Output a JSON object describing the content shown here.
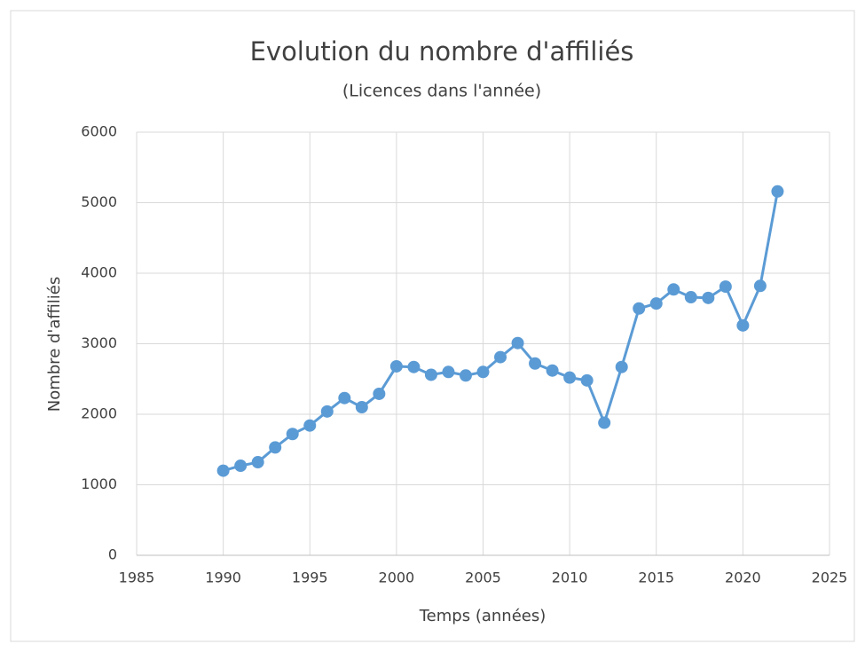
{
  "chart_data": {
    "type": "line",
    "title": "Evolution du nombre d'affiliés",
    "subtitle": "(Licences dans l'année)",
    "x_label": "Temps (années)",
    "y_label": "Nombre d'affiliés",
    "x": [
      1990,
      1991,
      1992,
      1993,
      1994,
      1995,
      1996,
      1997,
      1998,
      1999,
      2000,
      2001,
      2002,
      2003,
      2004,
      2005,
      2006,
      2007,
      2008,
      2009,
      2010,
      2011,
      2012,
      2013,
      2014,
      2015,
      2016,
      2017,
      2018,
      2019,
      2020,
      2021,
      2022
    ],
    "series": [
      {
        "color": "#5b9bd5",
        "values": [
          1200,
          1270,
          1320,
          1530,
          1720,
          1840,
          2040,
          2230,
          2100,
          2290,
          2680,
          2670,
          2560,
          2600,
          2550,
          2600,
          2810,
          3010,
          2720,
          2620,
          2520,
          2480,
          1880,
          2670,
          3500,
          3570,
          3770,
          3660,
          3650,
          3810,
          3260,
          3820,
          5160
        ]
      }
    ],
    "xlim": [
      1985,
      2025
    ],
    "xticks": [
      1985,
      1990,
      1995,
      2000,
      2005,
      2010,
      2015,
      2020,
      2025
    ],
    "ylim": [
      0,
      6000
    ],
    "yticks": [
      0,
      1000,
      2000,
      3000,
      4000,
      5000,
      6000
    ],
    "grid": true
  }
}
